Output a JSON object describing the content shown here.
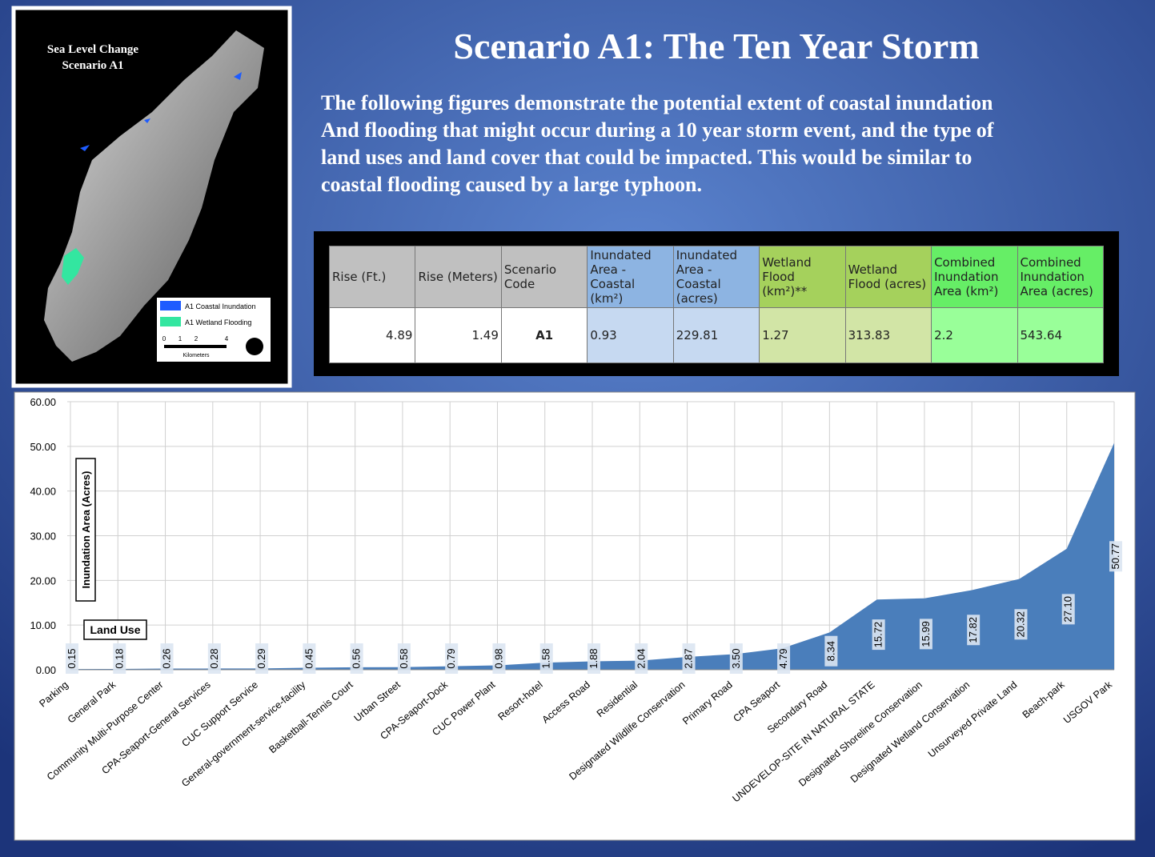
{
  "map": {
    "title": [
      "Sea Level Change",
      "Scenario A1"
    ],
    "legend": [
      "A1 Coastal Inundation",
      "A1 Wetland Flooding"
    ],
    "scale_ticks": [
      "0",
      "1",
      "2",
      "4"
    ],
    "scale_unit": "Kilometers"
  },
  "header": {
    "title": "Scenario A1: The Ten Year Storm",
    "paragraph_lines": [
      "The following figures demonstrate the potential extent of coastal inundation",
      "And flooding that might occur during a 10 year storm event, and the type of",
      "land uses and land cover that could be impacted.  This would be similar to",
      "coastal flooding caused by a large typhoon."
    ]
  },
  "table": {
    "columns": [
      "Rise (Ft.)",
      "Rise (Meters)",
      "Scenario Code",
      "Inundated Area - Coastal (km²)",
      "Inundated Area - Coastal (acres)",
      "Wetland Flood (km²)**",
      "Wetland Flood (acres)",
      "Combined Inundation Area (km²)",
      "Combined Inundation Area (acres)"
    ],
    "rows": [
      [
        4.89,
        1.49,
        "A1",
        0.93,
        229.81,
        1.27,
        313.83,
        2.2,
        543.64
      ]
    ]
  },
  "chart_data": {
    "type": "area",
    "x_label": "Land Use",
    "y_label": "Inundation Area (Acres)",
    "categories": [
      "Parking",
      "General Park",
      "Community Multi-Purpose Center",
      "CPA-Seaport-General Services",
      "CUC Support Service",
      "General-government-service-facility",
      "Basketball-Tennis Court",
      "Urban Street",
      "CPA-Seaport-Dock",
      "CUC Power Plant",
      "Resort-hotel",
      "Access Road",
      "Residential",
      "Designated Wildlife Conservation",
      "Primary Road",
      "CPA Seaport",
      "Secondary Road",
      "UNDEVELOP-SITE IN NATURAL STATE",
      "Designated Shoreline Conservation",
      "Designated Wetland Conservation",
      "Unsurveyed Private Land",
      "Beach-park",
      "USGOV Park"
    ],
    "values": [
      0.15,
      0.18,
      0.26,
      0.28,
      0.29,
      0.45,
      0.56,
      0.58,
      0.79,
      0.98,
      1.58,
      1.88,
      2.04,
      2.87,
      3.5,
      4.79,
      8.34,
      15.72,
      15.99,
      17.82,
      20.32,
      27.1,
      50.77
    ],
    "value_labels": [
      "0.15",
      "0.18",
      "0.26",
      "0.28",
      "0.29",
      "0.45",
      "0.56",
      "0.58",
      "0.79",
      "0.98",
      "1.58",
      "1.88",
      "2.04",
      "2.87",
      "3.50",
      "4.79",
      "8.34",
      "15.72",
      "15.99",
      "17.82",
      "20.32",
      "27.10",
      "50.77"
    ],
    "color": "#4a7ebb",
    "ylim": [
      0,
      60
    ],
    "yticks": [
      {
        "value": 0,
        "label": "0.00"
      },
      {
        "value": 10,
        "label": "10.00"
      },
      {
        "value": 20,
        "label": "20.00"
      },
      {
        "value": 30,
        "label": "30.00"
      },
      {
        "value": 40,
        "label": "40.00"
      },
      {
        "value": 50,
        "label": "50.00"
      },
      {
        "value": 60,
        "label": "60.00"
      }
    ],
    "grid": true
  }
}
